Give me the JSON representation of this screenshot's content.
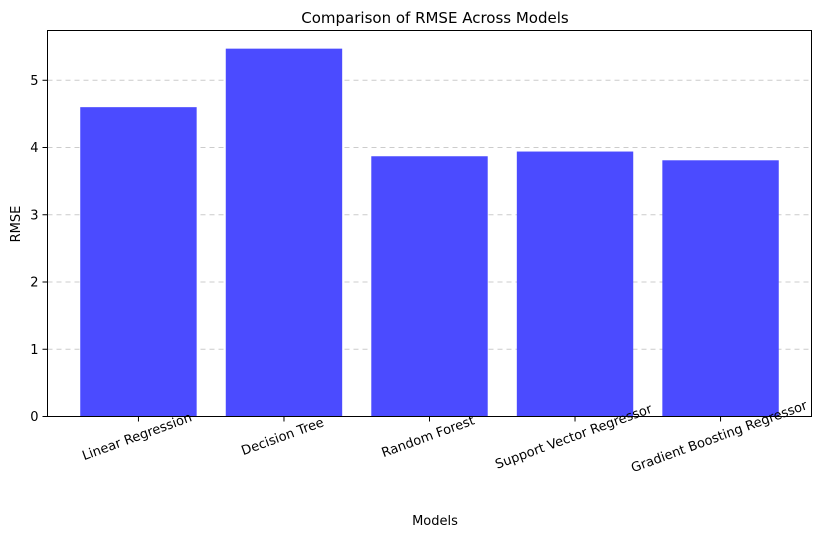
{
  "chart_data": {
    "type": "bar",
    "title": "Comparison of RMSE Across Models",
    "xlabel": "Models",
    "ylabel": "RMSE",
    "categories": [
      "Linear Regression",
      "Decision Tree",
      "Random Forest",
      "Support Vector Regressor",
      "Gradient Boosting Regressor"
    ],
    "values": [
      4.6,
      5.47,
      3.87,
      3.94,
      3.81
    ],
    "ylim": [
      0,
      5.74
    ],
    "yticks": [
      "0",
      "1",
      "2",
      "3",
      "4",
      "5"
    ],
    "grid": "y-dashed",
    "bar_color": "#4b4bff",
    "tick_rotation_deg": -20
  }
}
